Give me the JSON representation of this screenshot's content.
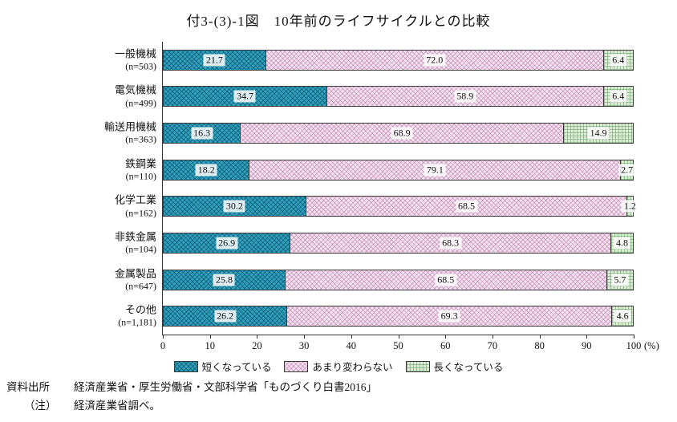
{
  "title": "付3-(3)-1図　10年前のライフサイクルとの比較",
  "chart_data": {
    "type": "bar",
    "stacked": true,
    "orientation": "horizontal",
    "title": "付3-(3)-1図　10年前のライフサイクルとの比較",
    "categories": [
      "一般機械",
      "電気機械",
      "輸送用機械",
      "鉄鋼業",
      "化学工業",
      "非鉄金属",
      "金属製品",
      "その他"
    ],
    "n_labels": [
      "(n=503)",
      "(n=499)",
      "(n=363)",
      "(n=110)",
      "(n=162)",
      "(n=104)",
      "(n=647)",
      "(n=1,181)"
    ],
    "series": [
      {
        "name": "短くなっている",
        "color": "#2fa0bd",
        "pattern": "diagonal-crosshatch",
        "values": [
          21.7,
          34.7,
          16.3,
          18.2,
          30.2,
          26.9,
          25.8,
          26.2
        ]
      },
      {
        "name": "あまり変わらない",
        "color": "#f2e4ef",
        "pattern": "diagonal-crosshatch-pink",
        "values": [
          72.0,
          58.9,
          68.9,
          79.1,
          68.5,
          68.3,
          68.5,
          69.3
        ]
      },
      {
        "name": "長くなっている",
        "color": "#daecd4",
        "pattern": "grid-green",
        "values": [
          6.4,
          6.4,
          14.9,
          2.7,
          1.2,
          4.8,
          5.7,
          4.6
        ]
      }
    ],
    "xlim": [
      0,
      100
    ],
    "xticks": [
      0,
      10,
      20,
      30,
      40,
      50,
      60,
      70,
      80,
      90,
      100
    ],
    "x_unit": "(%)",
    "grid": false,
    "legend_position": "bottom"
  },
  "footer": {
    "source_label": "資料出所",
    "source_text": "経済産業省・厚生労働省・文部科学省「ものづくり白書2016」",
    "note_label": "（注）",
    "note_text": "経済産業省調べ。"
  }
}
